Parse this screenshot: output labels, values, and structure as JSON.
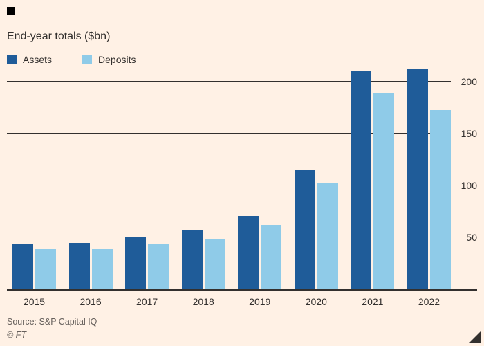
{
  "chart": {
    "title": "End-year totals ($bn)",
    "source": "Source: S&P Capital IQ",
    "copyright": "© FT",
    "background_color": "#FFF1E5"
  },
  "chart_data": {
    "type": "bar",
    "title": "End-year totals ($bn)",
    "categories": [
      "2015",
      "2016",
      "2017",
      "2018",
      "2019",
      "2020",
      "2021",
      "2022"
    ],
    "series": [
      {
        "name": "Assets",
        "color": "#1F5C99",
        "values": [
          44,
          45,
          51,
          57,
          71,
          115,
          211,
          212
        ]
      },
      {
        "name": "Deposits",
        "color": "#8FCBE8",
        "values": [
          39,
          39,
          44,
          49,
          62,
          102,
          189,
          173
        ]
      }
    ],
    "xlabel": "",
    "ylabel": "",
    "ylim": [
      0,
      213
    ],
    "yticks": [
      50,
      100,
      150,
      200
    ],
    "grid": true,
    "legend_position": "top-left"
  }
}
